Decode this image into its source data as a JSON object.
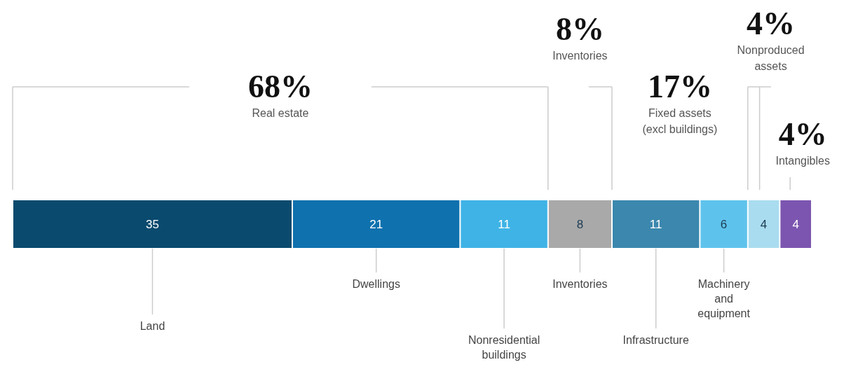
{
  "chart_data": {
    "type": "bar",
    "orientation": "horizontal",
    "stacked": true,
    "categories": [
      null
    ],
    "xlim": [
      0,
      100
    ],
    "tick_labels": false,
    "data_labels": true,
    "series": [
      {
        "name": "Land",
        "color": "#0a4a6e",
        "values": [
          35
        ]
      },
      {
        "name": "Dwellings",
        "color": "#0f71ae",
        "values": [
          21
        ]
      },
      {
        "name": "Nonresidential buildings",
        "color": "#3fb3e6",
        "values": [
          11
        ]
      },
      {
        "name": "Inventories",
        "color": "#a9a9a9",
        "values": [
          8
        ]
      },
      {
        "name": "Infrastructure",
        "color": "#3b87ae",
        "values": [
          11
        ]
      },
      {
        "name": "Machinery and equipment",
        "color": "#5ec3ec",
        "values": [
          6
        ]
      },
      {
        "color": "#a9dcef",
        "values": [
          4
        ]
      },
      {
        "color": "#7c55b0",
        "values": [
          4
        ]
      }
    ],
    "annotations": [
      "68%\nReal estate",
      "8%\nInventories",
      "17%\nFixed assets\n(excl buildings)",
      "4%\nNonproduced\nassets",
      "4%\nIntangibles"
    ]
  }
}
